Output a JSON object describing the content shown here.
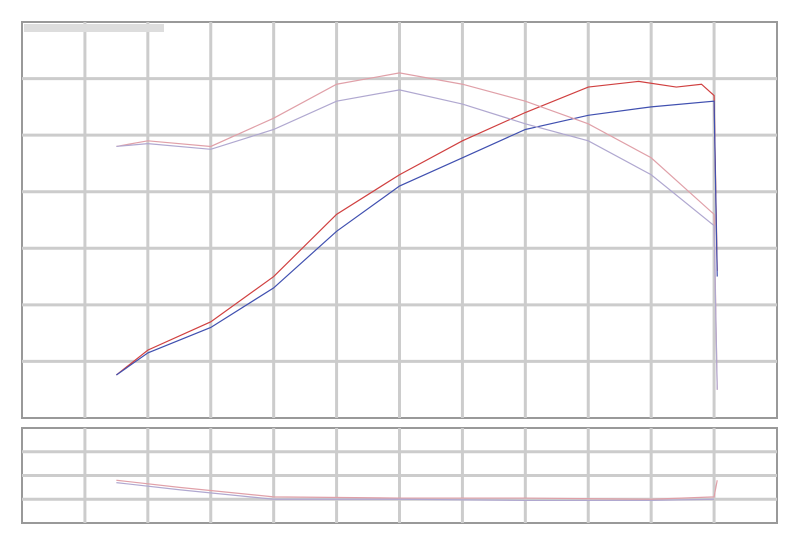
{
  "chart_data": [
    {
      "type": "line",
      "title": "",
      "xlabel": "",
      "ylabel": "",
      "xlim": [
        0,
        12
      ],
      "ylim": [
        0,
        7
      ],
      "grid": true,
      "legend": "top-left",
      "series": [
        {
          "color": "#d04040",
          "points": [
            [
              1.5,
              0.76
            ],
            [
              2,
              1.2
            ],
            [
              3,
              1.7
            ],
            [
              4,
              2.5
            ],
            [
              5,
              3.6
            ],
            [
              6,
              4.3
            ],
            [
              7,
              4.9
            ],
            [
              8,
              5.4
            ],
            [
              9,
              5.85
            ],
            [
              9.8,
              5.95
            ],
            [
              10.4,
              5.85
            ],
            [
              10.8,
              5.9
            ],
            [
              11,
              5.7
            ],
            [
              11.05,
              2.6
            ]
          ]
        },
        {
          "color": "#4050b0",
          "points": [
            [
              1.5,
              0.76
            ],
            [
              2,
              1.15
            ],
            [
              3,
              1.6
            ],
            [
              4,
              2.3
            ],
            [
              5,
              3.3
            ],
            [
              6,
              4.1
            ],
            [
              7,
              4.6
            ],
            [
              8,
              5.1
            ],
            [
              9,
              5.35
            ],
            [
              10,
              5.5
            ],
            [
              11,
              5.6
            ],
            [
              11.05,
              2.5
            ]
          ]
        },
        {
          "color": "#e0a0a8",
          "points": [
            [
              1.5,
              4.8
            ],
            [
              2,
              4.9
            ],
            [
              3,
              4.8
            ],
            [
              4,
              5.3
            ],
            [
              5,
              5.9
            ],
            [
              6,
              6.1
            ],
            [
              7,
              5.9
            ],
            [
              8,
              5.6
            ],
            [
              9,
              5.2
            ],
            [
              10,
              4.6
            ],
            [
              11,
              3.6
            ],
            [
              11.05,
              0.5
            ]
          ]
        },
        {
          "color": "#b0a8d0",
          "points": [
            [
              1.5,
              4.8
            ],
            [
              2,
              4.85
            ],
            [
              3,
              4.75
            ],
            [
              4,
              5.1
            ],
            [
              5,
              5.6
            ],
            [
              6,
              5.8
            ],
            [
              7,
              5.55
            ],
            [
              8,
              5.2
            ],
            [
              9,
              4.9
            ],
            [
              10,
              4.3
            ],
            [
              11,
              3.4
            ],
            [
              11.05,
              0.5
            ]
          ]
        }
      ]
    },
    {
      "type": "line",
      "xlim": [
        0,
        12
      ],
      "ylim": [
        0,
        4
      ],
      "grid": true,
      "series": [
        {
          "color": "#e0a0a8",
          "points": [
            [
              1.5,
              1.8
            ],
            [
              2.5,
              1.5
            ],
            [
              4,
              1.1
            ],
            [
              6,
              1.05
            ],
            [
              8,
              1.05
            ],
            [
              10,
              1.0
            ],
            [
              11,
              1.1
            ],
            [
              11.05,
              1.8
            ]
          ]
        },
        {
          "color": "#b0a8d0",
          "points": [
            [
              1.5,
              1.7
            ],
            [
              2.5,
              1.4
            ],
            [
              4,
              1.0
            ],
            [
              6,
              1.0
            ],
            [
              8,
              0.95
            ],
            [
              10,
              0.95
            ],
            [
              11,
              1.0
            ]
          ]
        }
      ]
    }
  ]
}
